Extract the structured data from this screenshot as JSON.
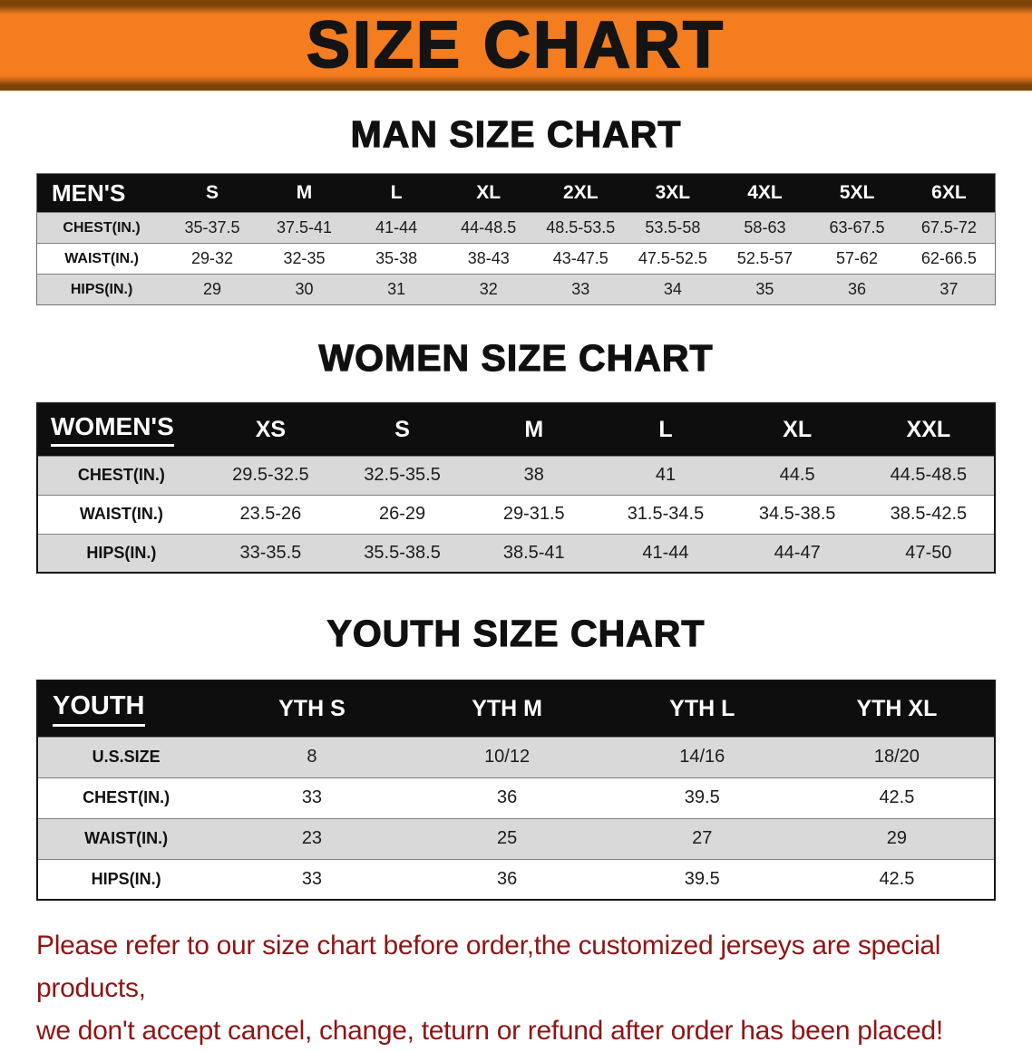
{
  "banner": {
    "title": "SIZE CHART"
  },
  "colors": {
    "banner_orange": "#f47d1f",
    "banner_edge": "#7c4407",
    "table_header_bg": "#0e0e0e",
    "row_stripe": "#d9d9d9",
    "notice_red": "#8f1515"
  },
  "sections": [
    {
      "heading": "MAN SIZE CHART",
      "table": {
        "label_underline": false,
        "header": [
          "MEN'S",
          "S",
          "M",
          "L",
          "XL",
          "2XL",
          "3XL",
          "4XL",
          "5XL",
          "6XL"
        ],
        "rows": [
          [
            "CHEST(IN.)",
            "35-37.5",
            "37.5-41",
            "41-44",
            "44-48.5",
            "48.5-53.5",
            "53.5-58",
            "58-63",
            "63-67.5",
            "67.5-72"
          ],
          [
            "WAIST(IN.)",
            "29-32",
            "32-35",
            "35-38",
            "38-43",
            "43-47.5",
            "47.5-52.5",
            "52.5-57",
            "57-62",
            "62-66.5"
          ],
          [
            "HIPS(IN.)",
            "29",
            "30",
            "31",
            "32",
            "33",
            "34",
            "35",
            "36",
            "37"
          ]
        ]
      }
    },
    {
      "heading": "WOMEN SIZE CHART",
      "table": {
        "label_underline": true,
        "header": [
          "WOMEN'S",
          "XS",
          "S",
          "M",
          "L",
          "XL",
          "XXL"
        ],
        "rows": [
          [
            "CHEST(IN.)",
            "29.5-32.5",
            "32.5-35.5",
            "38",
            "41",
            "44.5",
            "44.5-48.5"
          ],
          [
            "WAIST(IN.)",
            "23.5-26",
            "26-29",
            "29-31.5",
            "31.5-34.5",
            "34.5-38.5",
            "38.5-42.5"
          ],
          [
            "HIPS(IN.)",
            "33-35.5",
            "35.5-38.5",
            "38.5-41",
            "41-44",
            "44-47",
            "47-50"
          ]
        ]
      }
    },
    {
      "heading": "YOUTH SIZE CHART",
      "table": {
        "label_underline": true,
        "header": [
          "YOUTH",
          "YTH S",
          "YTH M",
          "YTH L",
          "YTH XL"
        ],
        "rows": [
          [
            "U.S.SIZE",
            "8",
            "10/12",
            "14/16",
            "18/20"
          ],
          [
            "CHEST(IN.)",
            "33",
            "36",
            "39.5",
            "42.5"
          ],
          [
            "WAIST(IN.)",
            "23",
            "25",
            "27",
            "29"
          ],
          [
            "HIPS(IN.)",
            "33",
            "36",
            "39.5",
            "42.5"
          ]
        ]
      }
    }
  ],
  "footer": {
    "line1": "Please refer to our size chart before order,the customized jerseys are special products,",
    "line2": "we don't accept cancel, change, teturn or refund after order has been placed!"
  }
}
